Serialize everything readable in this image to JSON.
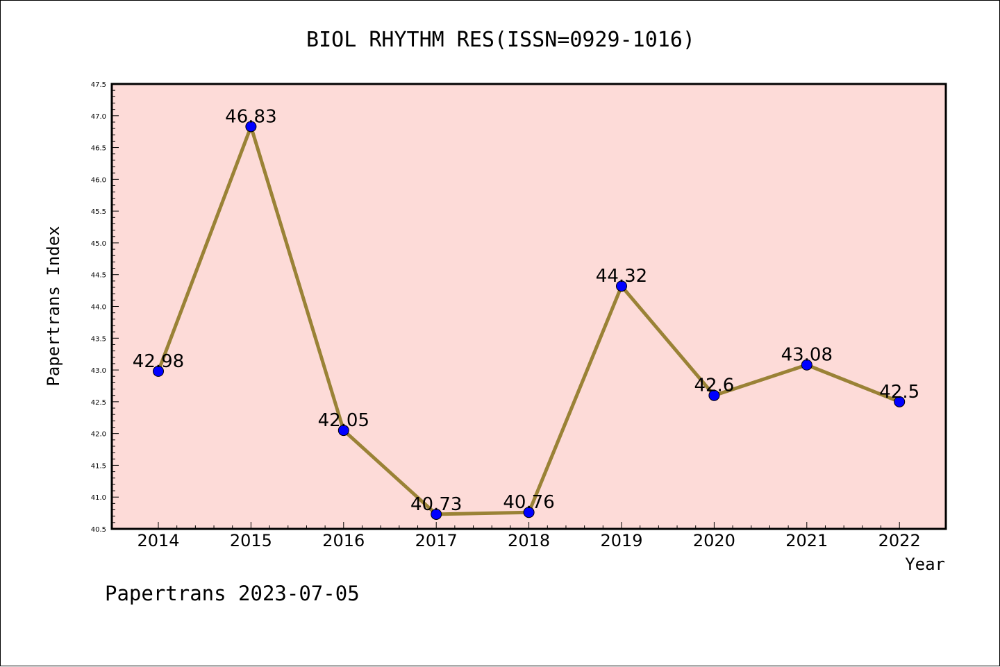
{
  "chart_data": {
    "type": "line",
    "title": "BIOL RHYTHM RES(ISSN=0929-1016)",
    "xlabel": "Year",
    "ylabel": "Papertrans Index",
    "categories": [
      "2014",
      "2015",
      "2016",
      "2017",
      "2018",
      "2019",
      "2020",
      "2021",
      "2022"
    ],
    "values": [
      42.98,
      46.83,
      42.05,
      40.73,
      40.76,
      44.32,
      42.6,
      43.08,
      42.5
    ],
    "data_labels": [
      "42.98",
      "46.83",
      "42.05",
      "40.73",
      "40.76",
      "44.32",
      "42.6",
      "43.08",
      "42.5"
    ],
    "ylim": [
      40.5,
      47.5
    ],
    "yticks": [
      "40.5",
      "41.0",
      "41.5",
      "42.0",
      "42.5",
      "43.0",
      "43.5",
      "44.0",
      "44.5",
      "45.0",
      "45.5",
      "46.0",
      "46.5",
      "47.0",
      "47.5"
    ],
    "grid": false,
    "legend": "none",
    "colors": {
      "plot_background": "#fddbd8",
      "line": "#9a8236",
      "marker": "#0000ff"
    }
  },
  "footer": "Papertrans 2023-07-05"
}
